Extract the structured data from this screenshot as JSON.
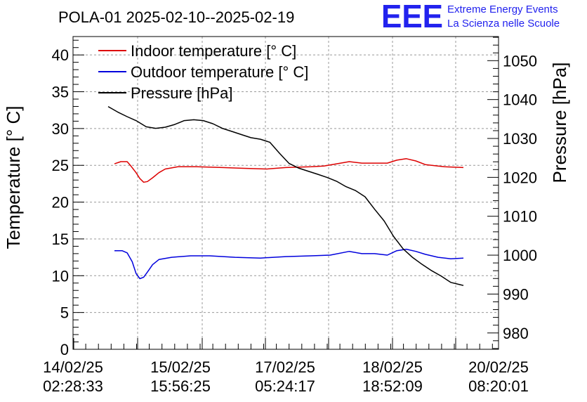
{
  "chart_data": {
    "type": "line",
    "title": "POLA-01 2025-02-10--2025-02-19",
    "ylabel": "Temperature [° C]",
    "y2label": "Pressure [hPa]",
    "ylim": [
      0,
      42.5
    ],
    "y2lim": [
      975.8,
      1056.2
    ],
    "yticks": [
      "0",
      "5",
      "10",
      "15",
      "20",
      "25",
      "30",
      "35",
      "40"
    ],
    "y2ticks": [
      "980",
      "990",
      "1000",
      "1010",
      "1020",
      "1030",
      "1040",
      "1050"
    ],
    "xlim": [
      -0.5,
      6.0
    ],
    "xticks": [
      {
        "line1": "14/02/25",
        "line2": "02:28:33"
      },
      {
        "line1": "15/02/25",
        "line2": "15:56:25"
      },
      {
        "line1": "17/02/25",
        "line2": "05:24:17"
      },
      {
        "line1": "18/02/25",
        "line2": "18:52:09"
      },
      {
        "line1": "20/02/25",
        "line2": "08:20:01"
      }
    ],
    "grid": true,
    "legend": "top-left",
    "series": [
      {
        "name": "Indoor temperature [° C]",
        "color": "#dd0000",
        "axis": "left",
        "x": [
          0.1,
          0.2,
          0.3,
          0.36,
          0.44,
          0.5,
          0.56,
          0.62,
          0.7,
          0.8,
          0.9,
          1.1,
          1.4,
          1.8,
          2.1,
          2.5,
          2.8,
          3.2,
          3.4,
          3.6,
          3.8,
          4.0,
          4.2,
          4.4,
          4.55,
          4.7,
          4.85,
          5.0,
          5.3,
          5.6
        ],
        "y": [
          25.2,
          25.5,
          25.5,
          24.9,
          24.0,
          23.2,
          22.7,
          22.8,
          23.3,
          24.0,
          24.5,
          24.8,
          24.8,
          24.7,
          24.6,
          24.5,
          24.7,
          24.8,
          24.9,
          25.2,
          25.5,
          25.3,
          25.3,
          25.3,
          25.7,
          25.9,
          25.6,
          25.1,
          24.8,
          24.7
        ]
      },
      {
        "name": "Outdoor temperature [° C]",
        "color": "#0000dd",
        "axis": "left",
        "x": [
          0.1,
          0.22,
          0.3,
          0.38,
          0.44,
          0.5,
          0.56,
          0.62,
          0.7,
          0.8,
          1.0,
          1.3,
          1.6,
          2.0,
          2.4,
          2.8,
          3.2,
          3.5,
          3.8,
          4.0,
          4.2,
          4.4,
          4.55,
          4.7,
          4.85,
          5.0,
          5.2,
          5.4,
          5.6
        ],
        "y": [
          13.4,
          13.4,
          13.1,
          11.9,
          10.3,
          9.6,
          9.8,
          10.5,
          11.5,
          12.2,
          12.5,
          12.7,
          12.7,
          12.5,
          12.4,
          12.6,
          12.7,
          12.8,
          13.3,
          13.0,
          13.0,
          12.8,
          13.4,
          13.6,
          13.3,
          12.9,
          12.5,
          12.3,
          12.4
        ]
      },
      {
        "name": "Pressure [hPa]",
        "color": "#000000",
        "axis": "right",
        "x": [
          0.0,
          0.15,
          0.3,
          0.45,
          0.6,
          0.75,
          0.9,
          1.05,
          1.2,
          1.35,
          1.5,
          1.65,
          1.8,
          1.95,
          2.1,
          2.25,
          2.4,
          2.55,
          2.7,
          2.85,
          3.0,
          3.15,
          3.3,
          3.45,
          3.6,
          3.75,
          3.9,
          4.05,
          4.2,
          4.35,
          4.5,
          4.65,
          4.8,
          4.95,
          5.1,
          5.25,
          5.4,
          5.55,
          5.6
        ],
        "y": [
          1038.2,
          1036.8,
          1035.6,
          1034.5,
          1033.0,
          1032.6,
          1032.9,
          1033.6,
          1034.6,
          1034.8,
          1034.6,
          1033.8,
          1032.6,
          1031.8,
          1031.0,
          1030.2,
          1029.8,
          1029.0,
          1026.2,
          1023.6,
          1022.4,
          1021.6,
          1020.8,
          1020.0,
          1019.0,
          1017.6,
          1016.6,
          1015.0,
          1011.8,
          1008.8,
          1004.8,
          1001.6,
          999.4,
          997.6,
          996.0,
          994.6,
          993.0,
          992.4,
          992.2
        ]
      }
    ]
  },
  "logo": {
    "mark": "EEE",
    "line1": "Extreme Energy Events",
    "line2": "La Scienza nelle Scuole"
  }
}
